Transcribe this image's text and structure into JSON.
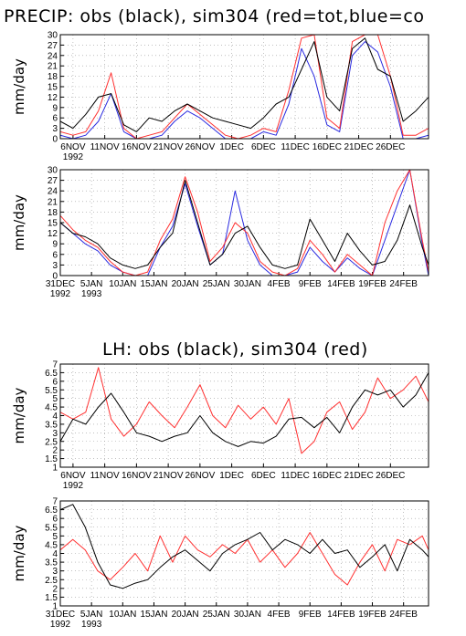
{
  "titles": {
    "precip": "PRECIP: obs (black), sim304 (red=tot,blue=co",
    "lh": "LH: obs (black), sim304 (red)"
  },
  "colors": {
    "obs": "#000000",
    "sim_total": "#ff3030",
    "sim_conv": "#2a2ae0",
    "grid": "#9a9a9a"
  },
  "chart_data": [
    {
      "type": "line",
      "ylabel": "mm/day",
      "ylim": [
        0,
        30
      ],
      "yticks": [
        "0",
        "3",
        "6",
        "9",
        "12",
        "15",
        "18",
        "21",
        "24",
        "27",
        "30"
      ],
      "xlim": [
        "1992-11-04",
        "1993-01-01"
      ],
      "xtick_dates": [
        "1992-11-06",
        "1992-11-11",
        "1992-11-16",
        "1992-11-21",
        "1992-11-26",
        "1992-12-01",
        "1992-12-06",
        "1992-12-11",
        "1992-12-16",
        "1992-12-21",
        "1992-12-26"
      ],
      "xtick_labels": [
        "6NOV",
        "11NOV",
        "16NOV",
        "21NOV",
        "26NOV",
        "1DEC",
        "6DEC",
        "11DEC",
        "16DEC",
        "21DEC",
        "26DEC"
      ],
      "year_label": "1992",
      "grid": true,
      "series": [
        {
          "name": "obs",
          "color": "#000000",
          "x": [
            "1992-11-04",
            "1992-11-06",
            "1992-11-08",
            "1992-11-10",
            "1992-11-12",
            "1992-11-14",
            "1992-11-16",
            "1992-11-18",
            "1992-11-20",
            "1992-11-22",
            "1992-11-24",
            "1992-11-26",
            "1992-11-28",
            "1992-11-30",
            "1992-12-02",
            "1992-12-04",
            "1992-12-06",
            "1992-12-08",
            "1992-12-10",
            "1992-12-12",
            "1992-12-14",
            "1992-12-16",
            "1992-12-18",
            "1992-12-20",
            "1992-12-22",
            "1992-12-24",
            "1992-12-26",
            "1992-12-28",
            "1992-12-30",
            "1993-01-01"
          ],
          "values": [
            5,
            3,
            7,
            12,
            13,
            4,
            2,
            6,
            5,
            8,
            10,
            8,
            6,
            5,
            4,
            3,
            6,
            10,
            12,
            20,
            28,
            12,
            8,
            26,
            29,
            20,
            18,
            5,
            8,
            12
          ]
        },
        {
          "name": "red=tot",
          "color": "#ff3030",
          "x": [
            "1992-11-04",
            "1992-11-06",
            "1992-11-08",
            "1992-11-10",
            "1992-11-12",
            "1992-11-14",
            "1992-11-16",
            "1992-11-18",
            "1992-11-20",
            "1992-11-22",
            "1992-11-24",
            "1992-11-26",
            "1992-11-28",
            "1992-11-30",
            "1992-12-02",
            "1992-12-04",
            "1992-12-06",
            "1992-12-08",
            "1992-12-10",
            "1992-12-12",
            "1992-12-14",
            "1992-12-16",
            "1992-12-18",
            "1992-12-20",
            "1992-12-22",
            "1992-12-24",
            "1992-12-26",
            "1992-12-28",
            "1992-12-30",
            "1993-01-01"
          ],
          "values": [
            2,
            1,
            2,
            8,
            19,
            3,
            0,
            1,
            2,
            6,
            10,
            7,
            4,
            1,
            0,
            1,
            3,
            2,
            14,
            29,
            30,
            6,
            3,
            28,
            30,
            30,
            18,
            1,
            1,
            3
          ]
        },
        {
          "name": "blue=co",
          "color": "#2a2ae0",
          "x": [
            "1992-11-04",
            "1992-11-06",
            "1992-11-08",
            "1992-11-10",
            "1992-11-12",
            "1992-11-14",
            "1992-11-16",
            "1992-11-18",
            "1992-11-20",
            "1992-11-22",
            "1992-11-24",
            "1992-11-26",
            "1992-11-28",
            "1992-11-30",
            "1992-12-02",
            "1992-12-04",
            "1992-12-06",
            "1992-12-08",
            "1992-12-10",
            "1992-12-12",
            "1992-12-14",
            "1992-12-16",
            "1992-12-18",
            "1992-12-20",
            "1992-12-22",
            "1992-12-24",
            "1992-12-26",
            "1992-12-28",
            "1992-12-30",
            "1993-01-01"
          ],
          "values": [
            1,
            0,
            1,
            5,
            13,
            2,
            0,
            0,
            1,
            5,
            8,
            6,
            3,
            0,
            0,
            0,
            2,
            1,
            10,
            26,
            18,
            4,
            2,
            24,
            28,
            25,
            15,
            0,
            0,
            1
          ]
        }
      ]
    },
    {
      "type": "line",
      "ylabel": "mm/day",
      "ylim": [
        0,
        30
      ],
      "yticks": [
        "0",
        "3",
        "6",
        "9",
        "12",
        "15",
        "18",
        "21",
        "24",
        "27",
        "30"
      ],
      "xlim": [
        "1992-12-31",
        "1993-02-28"
      ],
      "xtick_dates": [
        "1992-12-31",
        "1993-01-05",
        "1993-01-10",
        "1993-01-15",
        "1993-01-20",
        "1993-01-25",
        "1993-01-30",
        "1993-02-04",
        "1993-02-09",
        "1993-02-14",
        "1993-02-19",
        "1993-02-24"
      ],
      "xtick_labels": [
        "31DEC",
        "5JAN",
        "10JAN",
        "15JAN",
        "20JAN",
        "25JAN",
        "30JAN",
        "4FEB",
        "9FEB",
        "14FEB",
        "19FEB",
        "24FEB"
      ],
      "year_labels": [
        {
          "date": "1992-12-31",
          "text": "1992"
        },
        {
          "date": "1993-01-05",
          "text": "1993"
        }
      ],
      "grid": true,
      "series": [
        {
          "name": "obs",
          "color": "#000000",
          "x": [
            "1992-12-31",
            "1993-01-02",
            "1993-01-04",
            "1993-01-06",
            "1993-01-08",
            "1993-01-10",
            "1993-01-12",
            "1993-01-14",
            "1993-01-16",
            "1993-01-18",
            "1993-01-20",
            "1993-01-22",
            "1993-01-24",
            "1993-01-26",
            "1993-01-28",
            "1993-01-30",
            "1993-02-01",
            "1993-02-03",
            "1993-02-05",
            "1993-02-07",
            "1993-02-09",
            "1993-02-11",
            "1993-02-13",
            "1993-02-15",
            "1993-02-17",
            "1993-02-19",
            "1993-02-21",
            "1993-02-23",
            "1993-02-25",
            "1993-02-27",
            "1993-02-28"
          ],
          "values": [
            15,
            12,
            11,
            9,
            5,
            3,
            2,
            3,
            8,
            12,
            27,
            15,
            3,
            6,
            12,
            14,
            8,
            3,
            2,
            3,
            16,
            10,
            4,
            12,
            7,
            3,
            4,
            10,
            20,
            8,
            3
          ]
        },
        {
          "name": "red=tot",
          "color": "#ff3030",
          "x": [
            "1992-12-31",
            "1993-01-02",
            "1993-01-04",
            "1993-01-06",
            "1993-01-08",
            "1993-01-10",
            "1993-01-12",
            "1993-01-14",
            "1993-01-16",
            "1993-01-18",
            "1993-01-20",
            "1993-01-22",
            "1993-01-24",
            "1993-01-26",
            "1993-01-28",
            "1993-01-30",
            "1993-02-01",
            "1993-02-03",
            "1993-02-05",
            "1993-02-07",
            "1993-02-09",
            "1993-02-11",
            "1993-02-13",
            "1993-02-15",
            "1993-02-17",
            "1993-02-19",
            "1993-02-21",
            "1993-02-23",
            "1993-02-25",
            "1993-02-27",
            "1993-02-28"
          ],
          "values": [
            17,
            13,
            10,
            8,
            4,
            1,
            0,
            1,
            10,
            16,
            28,
            18,
            4,
            8,
            15,
            12,
            4,
            1,
            0,
            2,
            10,
            6,
            1,
            6,
            3,
            0,
            15,
            24,
            30,
            10,
            1
          ]
        },
        {
          "name": "blue=co",
          "color": "#2a2ae0",
          "x": [
            "1992-12-31",
            "1993-01-02",
            "1993-01-04",
            "1993-01-06",
            "1993-01-08",
            "1993-01-10",
            "1993-01-12",
            "1993-01-14",
            "1993-01-16",
            "1993-01-18",
            "1993-01-20",
            "1993-01-22",
            "1993-01-24",
            "1993-01-26",
            "1993-01-28",
            "1993-01-30",
            "1993-02-01",
            "1993-02-03",
            "1993-02-05",
            "1993-02-07",
            "1993-02-09",
            "1993-02-11",
            "1993-02-13",
            "1993-02-15",
            "1993-02-17",
            "1993-02-19",
            "1993-02-21",
            "1993-02-23",
            "1993-02-25",
            "1993-02-27",
            "1993-02-28"
          ],
          "values": [
            15,
            12,
            9,
            7,
            3,
            1,
            0,
            0,
            8,
            14,
            26,
            14,
            3,
            6,
            24,
            10,
            3,
            0,
            0,
            1,
            8,
            4,
            1,
            5,
            2,
            0,
            10,
            20,
            30,
            9,
            0
          ]
        }
      ]
    },
    {
      "type": "line",
      "ylabel": "mm/day",
      "ylim": [
        1,
        7
      ],
      "yticks": [
        "1",
        "1.5",
        "2",
        "2.5",
        "3",
        "3.5",
        "4",
        "4.5",
        "5",
        "5.5",
        "6",
        "6.5",
        "7"
      ],
      "xlim": [
        "1992-11-04",
        "1993-01-01"
      ],
      "xtick_dates": [
        "1992-11-06",
        "1992-11-11",
        "1992-11-16",
        "1992-11-21",
        "1992-11-26",
        "1992-12-01",
        "1992-12-06",
        "1992-12-11",
        "1992-12-16",
        "1992-12-21",
        "1992-12-26"
      ],
      "xtick_labels": [
        "6NOV",
        "11NOV",
        "16NOV",
        "21NOV",
        "26NOV",
        "1DEC",
        "6DEC",
        "11DEC",
        "16DEC",
        "21DEC",
        "26DEC"
      ],
      "year_label": "1992",
      "grid": true,
      "series": [
        {
          "name": "obs",
          "color": "#000000",
          "x": [
            "1992-11-04",
            "1992-11-06",
            "1992-11-08",
            "1992-11-10",
            "1992-11-12",
            "1992-11-14",
            "1992-11-16",
            "1992-11-18",
            "1992-11-20",
            "1992-11-22",
            "1992-11-24",
            "1992-11-26",
            "1992-11-28",
            "1992-11-30",
            "1992-12-02",
            "1992-12-04",
            "1992-12-06",
            "1992-12-08",
            "1992-12-10",
            "1992-12-12",
            "1992-12-14",
            "1992-12-16",
            "1992-12-18",
            "1992-12-20",
            "1992-12-22",
            "1992-12-24",
            "1992-12-26",
            "1992-12-28",
            "1992-12-30",
            "1993-01-01"
          ],
          "values": [
            2.5,
            3.8,
            3.5,
            4.5,
            5.3,
            4.2,
            3.0,
            2.8,
            2.5,
            2.8,
            3.0,
            4.0,
            3.0,
            2.5,
            2.2,
            2.5,
            2.4,
            2.8,
            3.8,
            3.9,
            3.3,
            3.9,
            3.0,
            4.5,
            5.5,
            5.2,
            5.5,
            4.5,
            5.2,
            6.5
          ]
        },
        {
          "name": "sim304 (red)",
          "color": "#ff3030",
          "x": [
            "1992-11-04",
            "1992-11-06",
            "1992-11-08",
            "1992-11-10",
            "1992-11-12",
            "1992-11-14",
            "1992-11-16",
            "1992-11-18",
            "1992-11-20",
            "1992-11-22",
            "1992-11-24",
            "1992-11-26",
            "1992-11-28",
            "1992-11-30",
            "1992-12-02",
            "1992-12-04",
            "1992-12-06",
            "1992-12-08",
            "1992-12-10",
            "1992-12-12",
            "1992-12-14",
            "1992-12-16",
            "1992-12-18",
            "1992-12-20",
            "1992-12-22",
            "1992-12-24",
            "1992-12-26",
            "1992-12-28",
            "1992-12-30",
            "1993-01-01"
          ],
          "values": [
            4.2,
            3.8,
            4.2,
            6.8,
            3.8,
            2.8,
            3.5,
            4.8,
            4.0,
            3.3,
            4.5,
            5.8,
            4.0,
            3.3,
            4.6,
            3.8,
            4.5,
            3.5,
            5.0,
            1.8,
            2.5,
            4.2,
            4.8,
            3.2,
            4.2,
            6.2,
            5.0,
            5.5,
            6.3,
            4.8
          ]
        }
      ]
    },
    {
      "type": "line",
      "ylabel": "mm/day",
      "ylim": [
        1,
        7
      ],
      "yticks": [
        "1",
        "1.5",
        "2",
        "2.5",
        "3",
        "3.5",
        "4",
        "4.5",
        "5",
        "5.5",
        "6",
        "6.5",
        "7"
      ],
      "xlim": [
        "1992-12-31",
        "1993-02-28"
      ],
      "xtick_dates": [
        "1992-12-31",
        "1993-01-05",
        "1993-01-10",
        "1993-01-15",
        "1993-01-20",
        "1993-01-25",
        "1993-01-30",
        "1993-02-04",
        "1993-02-09",
        "1993-02-14",
        "1993-02-19",
        "1993-02-24"
      ],
      "xtick_labels": [
        "31DEC",
        "5JAN",
        "10JAN",
        "15JAN",
        "20JAN",
        "25JAN",
        "30JAN",
        "4FEB",
        "9FEB",
        "14FEB",
        "19FEB",
        "24FEB"
      ],
      "year_labels": [
        {
          "date": "1992-12-31",
          "text": "1992"
        },
        {
          "date": "1993-01-05",
          "text": "1993"
        }
      ],
      "grid": true,
      "series": [
        {
          "name": "obs",
          "color": "#000000",
          "x": [
            "1992-12-31",
            "1993-01-02",
            "1993-01-04",
            "1993-01-06",
            "1993-01-08",
            "1993-01-10",
            "1993-01-12",
            "1993-01-14",
            "1993-01-16",
            "1993-01-18",
            "1993-01-20",
            "1993-01-22",
            "1993-01-24",
            "1993-01-26",
            "1993-01-28",
            "1993-01-30",
            "1993-02-01",
            "1993-02-03",
            "1993-02-05",
            "1993-02-07",
            "1993-02-09",
            "1993-02-11",
            "1993-02-13",
            "1993-02-15",
            "1993-02-17",
            "1993-02-19",
            "1993-02-21",
            "1993-02-23",
            "1993-02-25",
            "1993-02-27",
            "1993-02-28"
          ],
          "values": [
            6.5,
            6.8,
            5.5,
            3.5,
            2.2,
            2.0,
            2.3,
            2.5,
            3.2,
            3.8,
            4.2,
            3.6,
            3.0,
            4.0,
            4.5,
            4.8,
            5.2,
            4.2,
            4.8,
            4.5,
            4.0,
            4.8,
            4.0,
            4.2,
            3.2,
            3.8,
            4.5,
            3.0,
            4.8,
            4.2,
            3.8
          ]
        },
        {
          "name": "sim304 (red)",
          "color": "#ff3030",
          "x": [
            "1992-12-31",
            "1993-01-02",
            "1993-01-04",
            "1993-01-06",
            "1993-01-08",
            "1993-01-10",
            "1993-01-12",
            "1993-01-14",
            "1993-01-16",
            "1993-01-18",
            "1993-01-20",
            "1993-01-22",
            "1993-01-24",
            "1993-01-26",
            "1993-01-28",
            "1993-01-30",
            "1993-02-01",
            "1993-02-03",
            "1993-02-05",
            "1993-02-07",
            "1993-02-09",
            "1993-02-11",
            "1993-02-13",
            "1993-02-15",
            "1993-02-17",
            "1993-02-19",
            "1993-02-21",
            "1993-02-23",
            "1993-02-25",
            "1993-02-27",
            "1993-02-28"
          ],
          "values": [
            4.2,
            4.8,
            4.2,
            3.0,
            2.5,
            3.2,
            4.0,
            3.0,
            5.0,
            3.5,
            5.0,
            4.2,
            3.8,
            4.5,
            4.0,
            4.8,
            3.5,
            4.2,
            3.2,
            4.0,
            5.2,
            4.0,
            2.8,
            2.2,
            3.5,
            4.5,
            3.0,
            4.8,
            4.5,
            5.0,
            4.2
          ]
        }
      ]
    }
  ]
}
